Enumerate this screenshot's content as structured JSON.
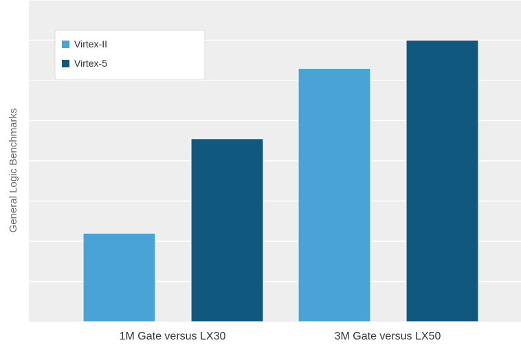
{
  "chart_data": {
    "type": "bar",
    "title": "",
    "xlabel": "",
    "ylabel": "General Logic Benchmarks",
    "categories": [
      "1M Gate versus LX30",
      "3M Gate versus LX50"
    ],
    "series": [
      {
        "name": "Virtex-II",
        "color": "#4aa3d6",
        "values": [
          2.2,
          6.3
        ]
      },
      {
        "name": "Virtex-5",
        "color": "#11587f",
        "values": [
          4.55,
          7.0
        ]
      }
    ],
    "ylim": [
      0,
      8
    ],
    "grid": true,
    "legend_position": "top-left",
    "y_tick_labels_shown": false
  },
  "colors": {
    "plot_background": "#eeeeee",
    "gridline": "#ffffff"
  }
}
